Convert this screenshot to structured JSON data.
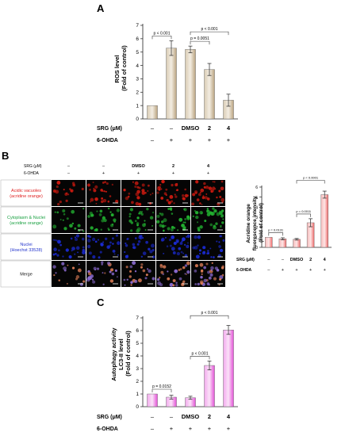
{
  "panels": {
    "A": {
      "label": "A",
      "ylabel_lines": [
        "ROS level",
        "(Fold of control)"
      ],
      "row_labels": [
        "SRG (μM)",
        "6-OHDA"
      ]
    },
    "B": {
      "label": "B",
      "header_labels": [
        "SRG (μM)",
        "6-OHDA"
      ],
      "micrograph_columns": [
        {
          "srg": "–",
          "ohda": "–"
        },
        {
          "srg": "–",
          "ohda": "+"
        },
        {
          "srg": "DMSO",
          "ohda": "+"
        },
        {
          "srg": "2",
          "ohda": "+"
        },
        {
          "srg": "4",
          "ohda": "+"
        }
      ],
      "micrograph_rows": [
        {
          "lines": [
            "Acidic vacuoles",
            "(acridine orange)"
          ],
          "color": "#e02020",
          "tint": "#cc1a10"
        },
        {
          "lines": [
            "Cytoplasm & Nuclei",
            "(acridine orange)"
          ],
          "color": "#18a040",
          "tint": "#22b030"
        },
        {
          "lines": [
            "Nuclei",
            "(Hoechst 33528)"
          ],
          "color": "#2233cc",
          "tint": "#1a2ad0"
        },
        {
          "lines": [
            "Merge"
          ],
          "color": "#111111",
          "tint": "#b06040"
        }
      ],
      "ylabel_lines": [
        "Acridine orange",
        "fluorescence intensity",
        "(Fold of control)"
      ],
      "row_labels": [
        "SRG (μM)",
        "6-OHDA"
      ]
    },
    "C": {
      "label": "C",
      "ylabel_lines": [
        "Autophagy activity",
        "LC3-II level",
        "(Fold of control)"
      ],
      "row_labels": [
        "SRG (μM)",
        "6-OHDA"
      ]
    }
  },
  "colors": {
    "panel_A_bar": "#b9a37f",
    "panel_B_bar": "#ef6b6b",
    "panel_C_bar": "#e24fd6"
  },
  "chart_data": [
    {
      "id": "A",
      "type": "bar",
      "categories": [
        "–",
        "–",
        "DMSO",
        "2",
        "4"
      ],
      "ohda": [
        "–",
        "+",
        "+",
        "+",
        "+"
      ],
      "values": [
        1.0,
        5.3,
        5.2,
        3.7,
        1.4
      ],
      "errors": [
        0.0,
        0.55,
        0.25,
        0.45,
        0.45
      ],
      "ylim": [
        0,
        7
      ],
      "yticks": [
        0,
        1,
        2,
        3,
        4,
        5,
        6,
        7
      ],
      "pvalues": [
        {
          "from": 0,
          "to": 1,
          "label": "p < 0.001"
        },
        {
          "from": 2,
          "to": 3,
          "label": "p = 0.0051"
        },
        {
          "from": 2,
          "to": 4,
          "label": "p < 0.001"
        }
      ]
    },
    {
      "id": "B",
      "type": "bar",
      "categories": [
        "–",
        "–",
        "DMSO",
        "2",
        "4"
      ],
      "ohda": [
        "–",
        "+",
        "+",
        "+",
        "+"
      ],
      "values": [
        1.0,
        0.85,
        0.8,
        2.45,
        5.25
      ],
      "errors": [
        0.0,
        0.1,
        0.08,
        0.4,
        0.35
      ],
      "ylim": [
        0,
        6
      ],
      "yticks": [
        0,
        1,
        2,
        3,
        4,
        5,
        6
      ],
      "pvalues": [
        {
          "from": 0,
          "to": 1,
          "label": "p = 0.0131"
        },
        {
          "from": 2,
          "to": 3,
          "label": "p = 0.0011"
        },
        {
          "from": 2,
          "to": 4,
          "label": "p < 0.0001"
        }
      ]
    },
    {
      "id": "C",
      "type": "bar",
      "categories": [
        "–",
        "–",
        "DMSO",
        "2",
        "4"
      ],
      "ohda": [
        "–",
        "+",
        "+",
        "+",
        "+"
      ],
      "values": [
        1.0,
        0.75,
        0.7,
        3.25,
        6.05
      ],
      "errors": [
        0.0,
        0.15,
        0.12,
        0.35,
        0.35
      ],
      "ylim": [
        0,
        7
      ],
      "yticks": [
        0,
        1,
        2,
        3,
        4,
        5,
        6,
        7
      ],
      "pvalues": [
        {
          "from": 0,
          "to": 1,
          "label": "p = 0.0152"
        },
        {
          "from": 2,
          "to": 3,
          "label": "p < 0.001"
        },
        {
          "from": 2,
          "to": 4,
          "label": "p < 0.001"
        }
      ]
    }
  ]
}
